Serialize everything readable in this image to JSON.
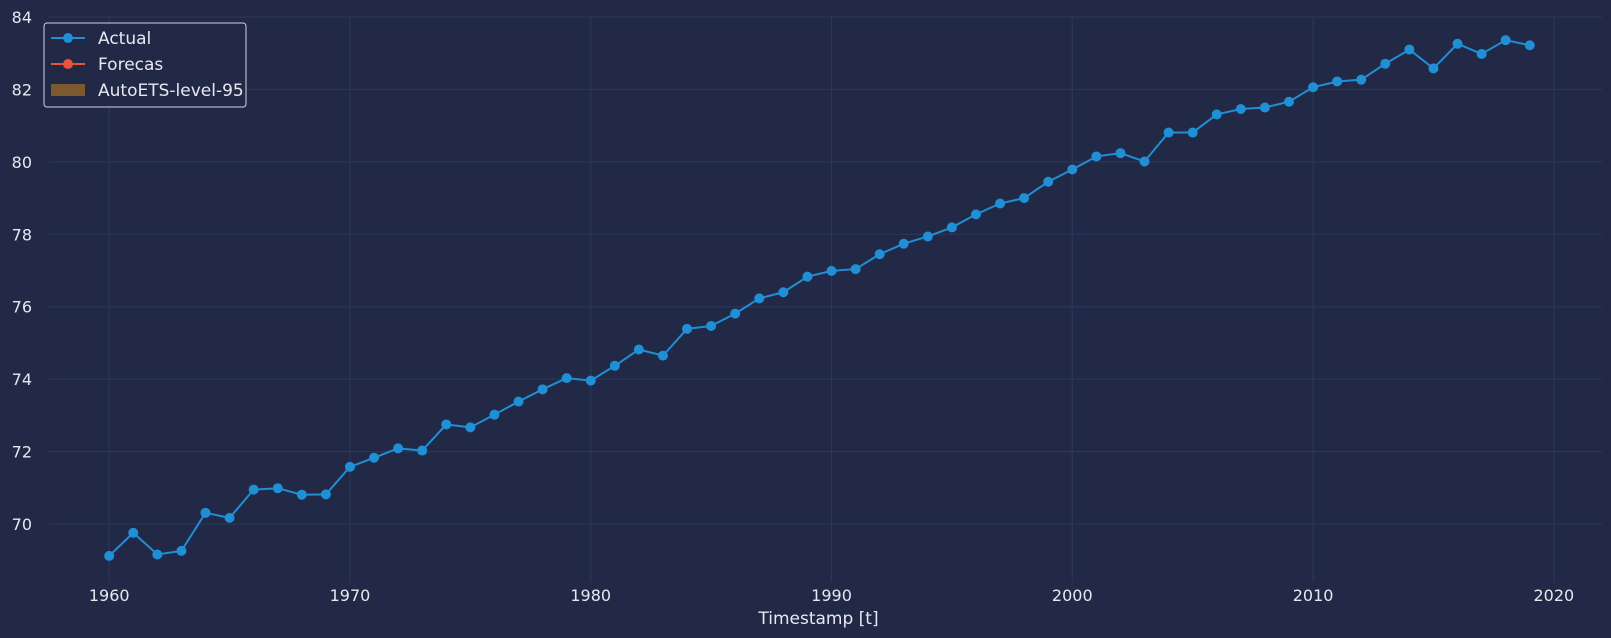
{
  "chart_data": {
    "type": "line",
    "xlabel": "Timestamp [t]",
    "ylabel": "",
    "xlim": [
      1957.5,
      2022
    ],
    "ylim": [
      68.4,
      84
    ],
    "xticks": [
      1960,
      1970,
      1980,
      1990,
      2000,
      2010,
      2020
    ],
    "yticks": [
      70,
      72,
      74,
      76,
      78,
      80,
      82,
      84
    ],
    "grid": true,
    "legend_position": "top-left",
    "legend": [
      {
        "label": "Actual",
        "kind": "line-marker",
        "color": "#1f8fd6"
      },
      {
        "label": "Forecas",
        "kind": "line-marker",
        "color": "#e9533a"
      },
      {
        "label": "AutoETS-level-95",
        "kind": "band",
        "color": "#7a5a2e"
      }
    ],
    "series": [
      {
        "name": "Actual",
        "color": "#1f8fd6",
        "x": [
          1960,
          1961,
          1962,
          1963,
          1964,
          1965,
          1966,
          1967,
          1968,
          1969,
          1970,
          1971,
          1972,
          1973,
          1974,
          1975,
          1976,
          1977,
          1978,
          1979,
          1980,
          1981,
          1982,
          1983,
          1984,
          1985,
          1986,
          1987,
          1988,
          1989,
          1990,
          1991,
          1992,
          1993,
          1994,
          1995,
          1996,
          1997,
          1998,
          1999,
          2000,
          2001,
          2002,
          2003,
          2004,
          2005,
          2006,
          2007,
          2008,
          2009,
          2010,
          2011,
          2012,
          2013,
          2014,
          2015,
          2016,
          2017,
          2018,
          2019
        ],
        "y": [
          69.12,
          69.76,
          69.16,
          69.26,
          70.31,
          70.17,
          70.95,
          70.99,
          70.81,
          70.82,
          71.58,
          71.83,
          72.09,
          72.03,
          72.75,
          72.67,
          73.02,
          73.38,
          73.72,
          74.03,
          73.96,
          74.37,
          74.82,
          74.65,
          75.39,
          75.47,
          75.81,
          76.23,
          76.4,
          76.83,
          76.99,
          77.04,
          77.45,
          77.74,
          77.94,
          78.19,
          78.55,
          78.85,
          79.0,
          79.45,
          79.79,
          80.15,
          80.24,
          80.01,
          80.81,
          80.81,
          81.31,
          81.46,
          81.5,
          81.66,
          82.06,
          82.22,
          82.27,
          82.71,
          83.1,
          82.58,
          83.26,
          82.98,
          83.36,
          83.22
        ]
      }
    ]
  }
}
